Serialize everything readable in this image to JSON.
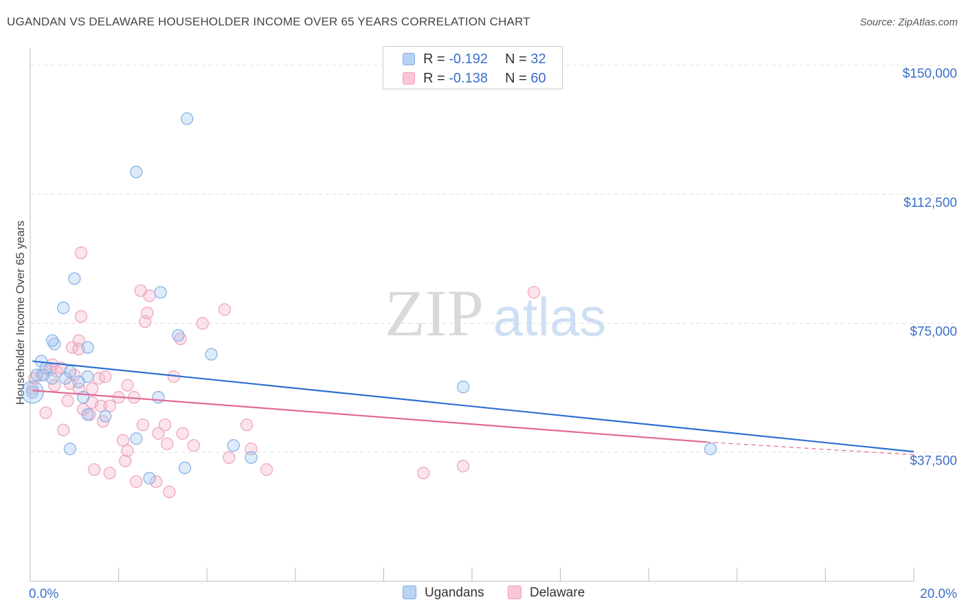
{
  "title": "UGANDAN VS DELAWARE HOUSEHOLDER INCOME OVER 65 YEARS CORRELATION CHART",
  "source": "Source: ZipAtlas.com",
  "watermark": {
    "zip": "ZIP",
    "atlas": "atlas"
  },
  "legend_top": {
    "r_label": "R =",
    "n_label": "N =",
    "rows": [
      {
        "r": "-0.192",
        "n": "32"
      },
      {
        "r": "-0.138",
        "n": "60"
      }
    ]
  },
  "chart_data": {
    "type": "scatter",
    "title": "UGANDAN VS DELAWARE HOUSEHOLDER INCOME OVER 65 YEARS CORRELATION CHART",
    "xlabel": "",
    "ylabel": "Householder Income Over 65 years",
    "xlim": [
      0,
      20
    ],
    "ylim": [
      0,
      155000
    ],
    "x_tick_labels": [
      "0.0%",
      "20.0%"
    ],
    "y_ticks": [
      37500,
      75000,
      112500,
      150000
    ],
    "y_tick_labels": [
      "$37,500",
      "$75,000",
      "$112,500",
      "$150,000"
    ],
    "colors": {
      "blue": "#9ec2ee",
      "blue_line": "#2c6fd1",
      "pink": "#f4b3c9",
      "pink_line": "#e06892",
      "axis_text": "#3b6ec9"
    },
    "series": [
      {
        "name": "Ugandans",
        "r": -0.192,
        "n": 32,
        "trend": {
          "x0": 0.05,
          "y0": 64000,
          "x1": 20,
          "y1": 37700
        },
        "points": [
          [
            0.05,
            55000
          ],
          [
            0.15,
            60000
          ],
          [
            0.25,
            64000
          ],
          [
            0.35,
            62000
          ],
          [
            0.5,
            59000
          ],
          [
            0.55,
            69000
          ],
          [
            0.5,
            70000
          ],
          [
            0.8,
            59000
          ],
          [
            0.9,
            61000
          ],
          [
            0.75,
            79500
          ],
          [
            1.0,
            88000
          ],
          [
            1.3,
            68000
          ],
          [
            1.1,
            58000
          ],
          [
            1.2,
            53500
          ],
          [
            1.3,
            48500
          ],
          [
            1.7,
            48000
          ],
          [
            0.9,
            38500
          ],
          [
            2.4,
            119000
          ],
          [
            3.55,
            134500
          ],
          [
            2.4,
            41500
          ],
          [
            2.7,
            30000
          ],
          [
            2.9,
            53500
          ],
          [
            2.95,
            84000
          ],
          [
            3.35,
            71500
          ],
          [
            3.5,
            33000
          ],
          [
            4.1,
            66000
          ],
          [
            4.6,
            39500
          ],
          [
            5.0,
            36000
          ],
          [
            9.8,
            56500
          ],
          [
            15.4,
            38500
          ],
          [
            1.3,
            59500
          ],
          [
            0.3,
            60000
          ]
        ]
      },
      {
        "name": "Delaware",
        "r": -0.138,
        "n": 60,
        "trend": {
          "x0": 0.05,
          "y0": 55500,
          "x1": 15.3,
          "y1": 40500
        },
        "trend_dashed": {
          "x0": 15.3,
          "y0": 40500,
          "x1": 20,
          "y1": 36800
        },
        "points": [
          [
            0.05,
            56000
          ],
          [
            0.1,
            59000
          ],
          [
            0.25,
            60000
          ],
          [
            0.35,
            49000
          ],
          [
            0.45,
            61500
          ],
          [
            0.55,
            57000
          ],
          [
            0.7,
            62000
          ],
          [
            0.5,
            63000
          ],
          [
            0.9,
            57500
          ],
          [
            1.0,
            60000
          ],
          [
            1.1,
            56000
          ],
          [
            0.85,
            52500
          ],
          [
            1.2,
            50000
          ],
          [
            1.35,
            48500
          ],
          [
            1.4,
            56000
          ],
          [
            0.75,
            44000
          ],
          [
            1.15,
            77000
          ],
          [
            1.1,
            70000
          ],
          [
            1.15,
            95500
          ],
          [
            1.4,
            52000
          ],
          [
            1.55,
            59000
          ],
          [
            1.6,
            51000
          ],
          [
            1.65,
            46500
          ],
          [
            1.7,
            59500
          ],
          [
            1.8,
            51000
          ],
          [
            2.0,
            53500
          ],
          [
            1.45,
            32500
          ],
          [
            1.8,
            31500
          ],
          [
            2.1,
            41000
          ],
          [
            2.15,
            35000
          ],
          [
            2.2,
            38000
          ],
          [
            2.2,
            57000
          ],
          [
            2.35,
            53500
          ],
          [
            2.4,
            29000
          ],
          [
            2.5,
            84500
          ],
          [
            2.55,
            45500
          ],
          [
            2.6,
            75500
          ],
          [
            2.65,
            78000
          ],
          [
            2.7,
            83000
          ],
          [
            2.85,
            29000
          ],
          [
            2.9,
            43000
          ],
          [
            3.05,
            45500
          ],
          [
            3.1,
            40000
          ],
          [
            3.15,
            26000
          ],
          [
            3.25,
            59500
          ],
          [
            3.4,
            70500
          ],
          [
            3.45,
            43000
          ],
          [
            3.7,
            39500
          ],
          [
            3.9,
            75000
          ],
          [
            4.4,
            79000
          ],
          [
            4.5,
            36000
          ],
          [
            4.9,
            45500
          ],
          [
            5.0,
            38500
          ],
          [
            5.35,
            32500
          ],
          [
            8.9,
            31500
          ],
          [
            9.8,
            33500
          ],
          [
            11.4,
            84000
          ],
          [
            0.95,
            68000
          ],
          [
            1.1,
            67500
          ],
          [
            0.6,
            61000
          ]
        ]
      }
    ]
  }
}
